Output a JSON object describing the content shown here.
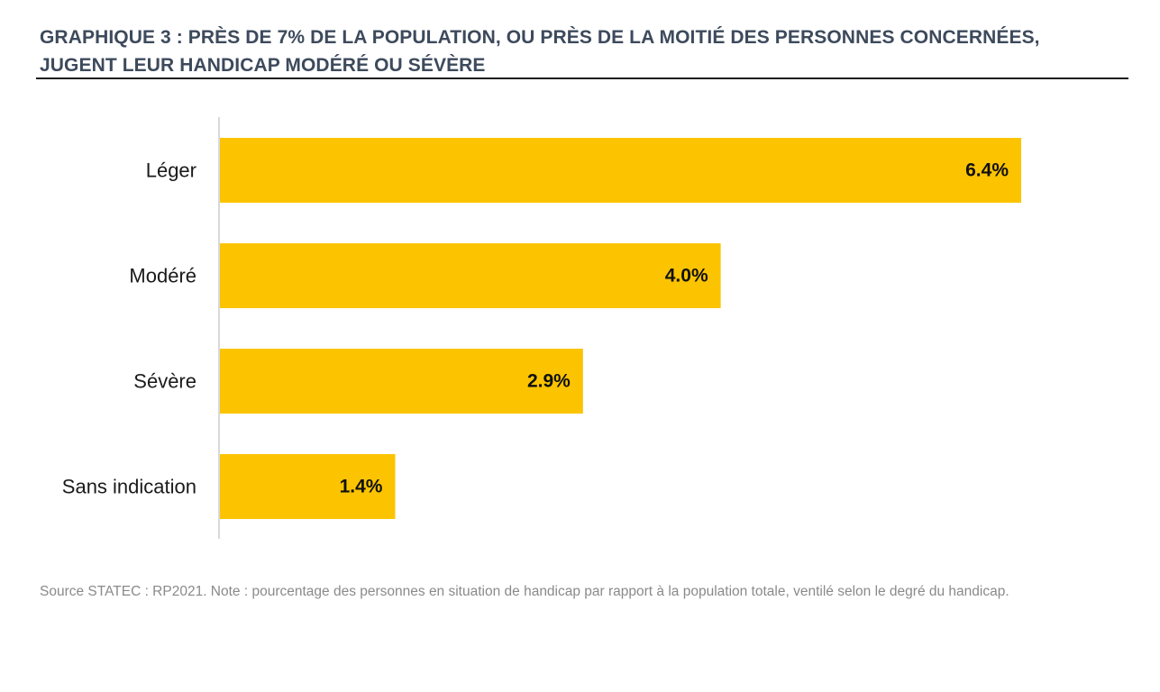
{
  "chart_title": "GRAPHIQUE 3 : PRÈS DE 7% DE LA POPULATION, OU PRÈS DE LA MOITIÉ DES PERSONNES CONCERNÉES, JUGENT LEUR HANDICAP MODÉRÉ OU SÉVÈRE",
  "source_note": "Source STATEC : RP2021. Note : pourcentage des personnes en situation de handicap par rapport à la population totale, ventilé selon le degré du handicap.",
  "colors": {
    "bar": "#fcc400",
    "axis": "#d9d9d9",
    "title": "#3d4a5c",
    "category_label": "#1a1a1a",
    "value_label": "#111111"
  },
  "chart_data": {
    "type": "bar",
    "orientation": "horizontal",
    "title": "GRAPHIQUE 3 : PRÈS DE 7% DE LA POPULATION, OU PRÈS DE LA MOITIÉ DES PERSONNES CONCERNÉES, JUGENT LEUR HANDICAP MODÉRÉ OU SÉVÈRE",
    "categories": [
      "Léger",
      "Modéré",
      "Sévère",
      "Sans indication"
    ],
    "values": [
      6.4,
      4.0,
      2.9,
      1.4
    ],
    "value_labels": [
      "6.4%",
      "4.0%",
      "2.9%",
      "1.4%"
    ],
    "xlabel": "",
    "ylabel": "",
    "xlim": [
      0,
      6.4
    ],
    "grid": false,
    "legend": "none"
  }
}
